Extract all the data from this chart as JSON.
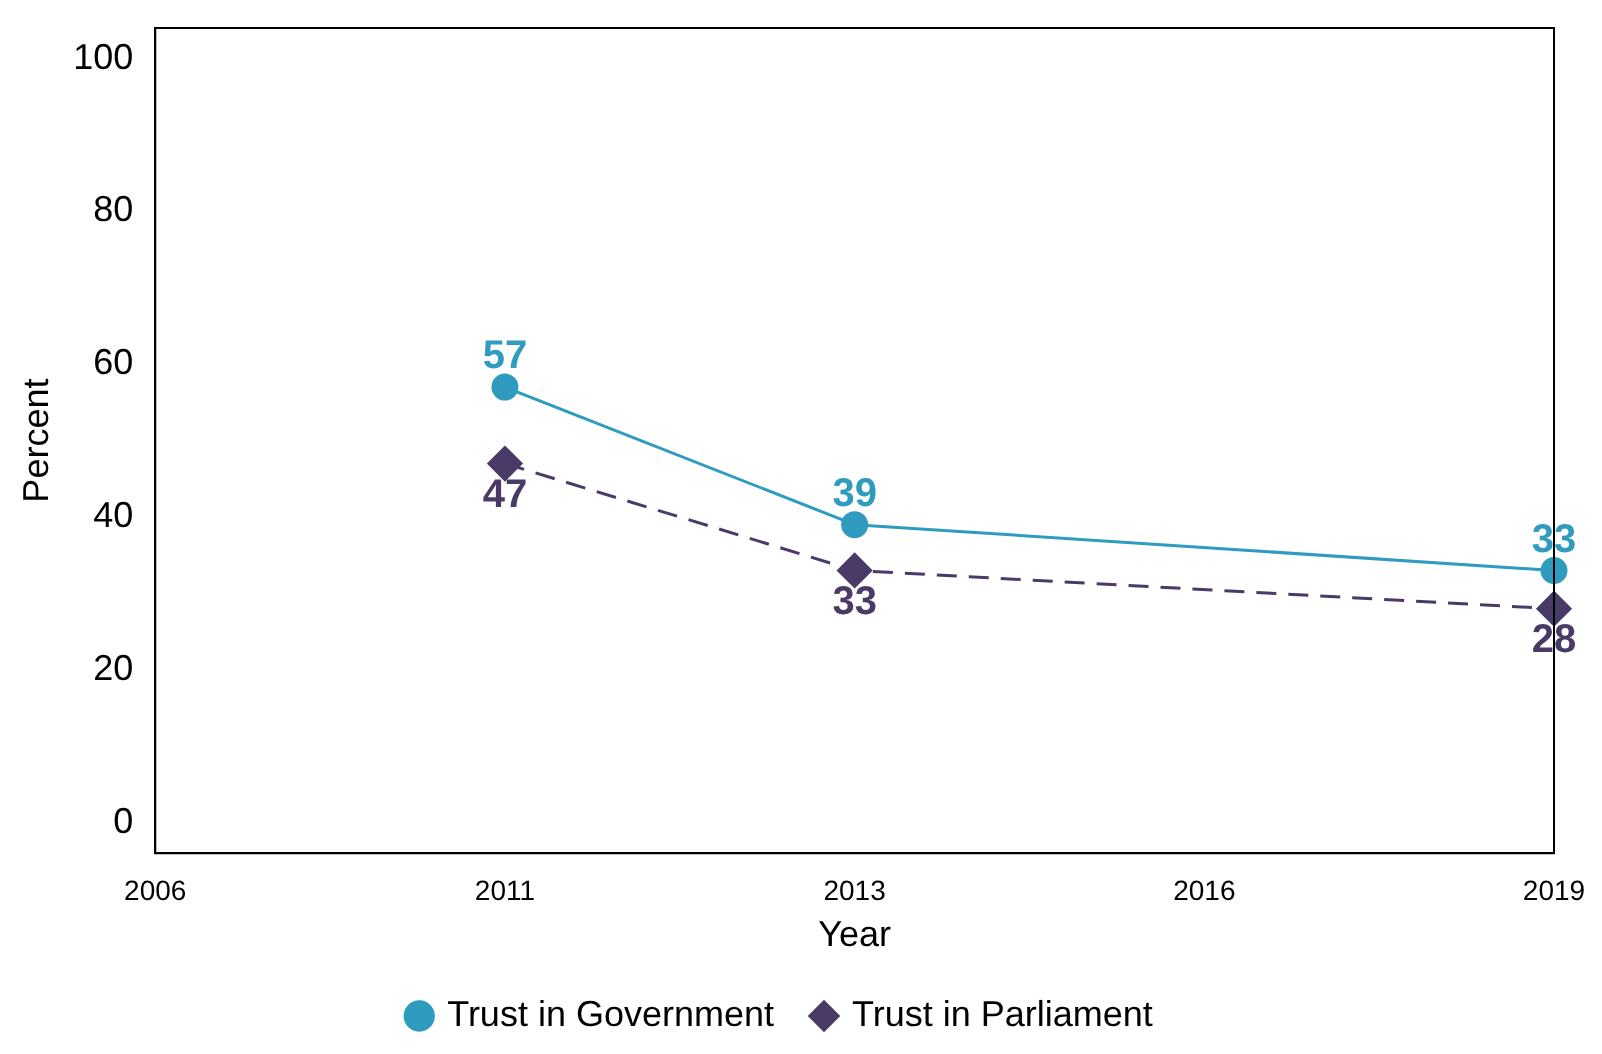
{
  "chart_data": {
    "type": "line",
    "xlabel": "Year",
    "ylabel": "Percent",
    "categories": [
      "2006",
      "2011",
      "2013",
      "2016",
      "2019"
    ],
    "ylim": [
      -4,
      104
    ],
    "yticks": [
      0,
      20,
      40,
      60,
      80,
      100
    ],
    "grid": false,
    "legend": "bottom",
    "data_labels": true,
    "series": [
      {
        "name": "Trust in Government",
        "color": "#2e9bbf",
        "values": [
          null,
          57,
          39,
          null,
          33
        ],
        "marker": "circle",
        "line_style": "solid"
      },
      {
        "name": "Trust in Parliament",
        "color": "#4a3a68",
        "values": [
          null,
          47,
          33,
          null,
          28
        ],
        "marker": "diamond",
        "line_style": "dashed"
      }
    ]
  }
}
